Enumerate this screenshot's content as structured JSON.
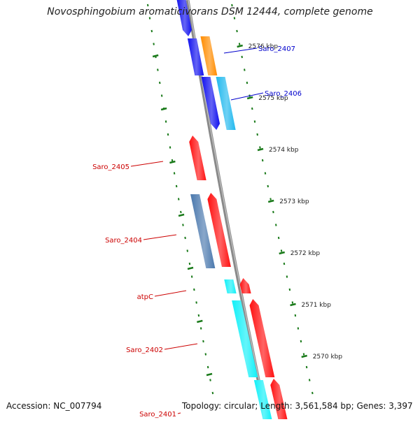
{
  "title": "Novosphingobium aromaticivorans DSM 12444, complete genome",
  "footer": {
    "accession": "Accession: NC_007794",
    "summary": "Topology: circular; Length: 3,561,584 bp; Genes: 3,397"
  },
  "colors": {
    "backbone": "#8a8a8a",
    "tick": "#1a7a1a",
    "tick_label": "#222222",
    "gene_label_red": "#cc0000",
    "gene_label_blue": "#0000cc",
    "red": "#ff1010",
    "blue": "#1010ee",
    "steel": "#4a78ad",
    "orange": "#ff8c00",
    "lightblue": "#20b8ee",
    "cyan": "#10f0f8"
  },
  "ticks": [
    {
      "label": "2576 kbp"
    },
    {
      "label": "2575 kbp"
    },
    {
      "label": "2574 kbp"
    },
    {
      "label": "2573 kbp"
    },
    {
      "label": "2572 kbp"
    },
    {
      "label": "2571 kbp"
    },
    {
      "label": "2570 kbp"
    }
  ],
  "gene_labels": [
    {
      "text": "Saro_2407",
      "color": "blue"
    },
    {
      "text": "Saro_2406",
      "color": "blue"
    },
    {
      "text": "Saro_2405",
      "color": "red"
    },
    {
      "text": "Saro_2404",
      "color": "red"
    },
    {
      "text": "atpC",
      "color": "red"
    },
    {
      "text": "Saro_2402",
      "color": "red"
    },
    {
      "text": "Saro_2401",
      "color": "red"
    }
  ],
  "features": [
    {
      "color": "blue"
    },
    {
      "color": "blue"
    },
    {
      "color": "blue"
    },
    {
      "color": "orange"
    },
    {
      "color": "lightblue"
    },
    {
      "color": "red"
    },
    {
      "color": "steel"
    },
    {
      "color": "red"
    },
    {
      "color": "cyan"
    },
    {
      "color": "red"
    },
    {
      "color": "cyan"
    },
    {
      "color": "red"
    },
    {
      "color": "cyan"
    },
    {
      "color": "red"
    }
  ]
}
